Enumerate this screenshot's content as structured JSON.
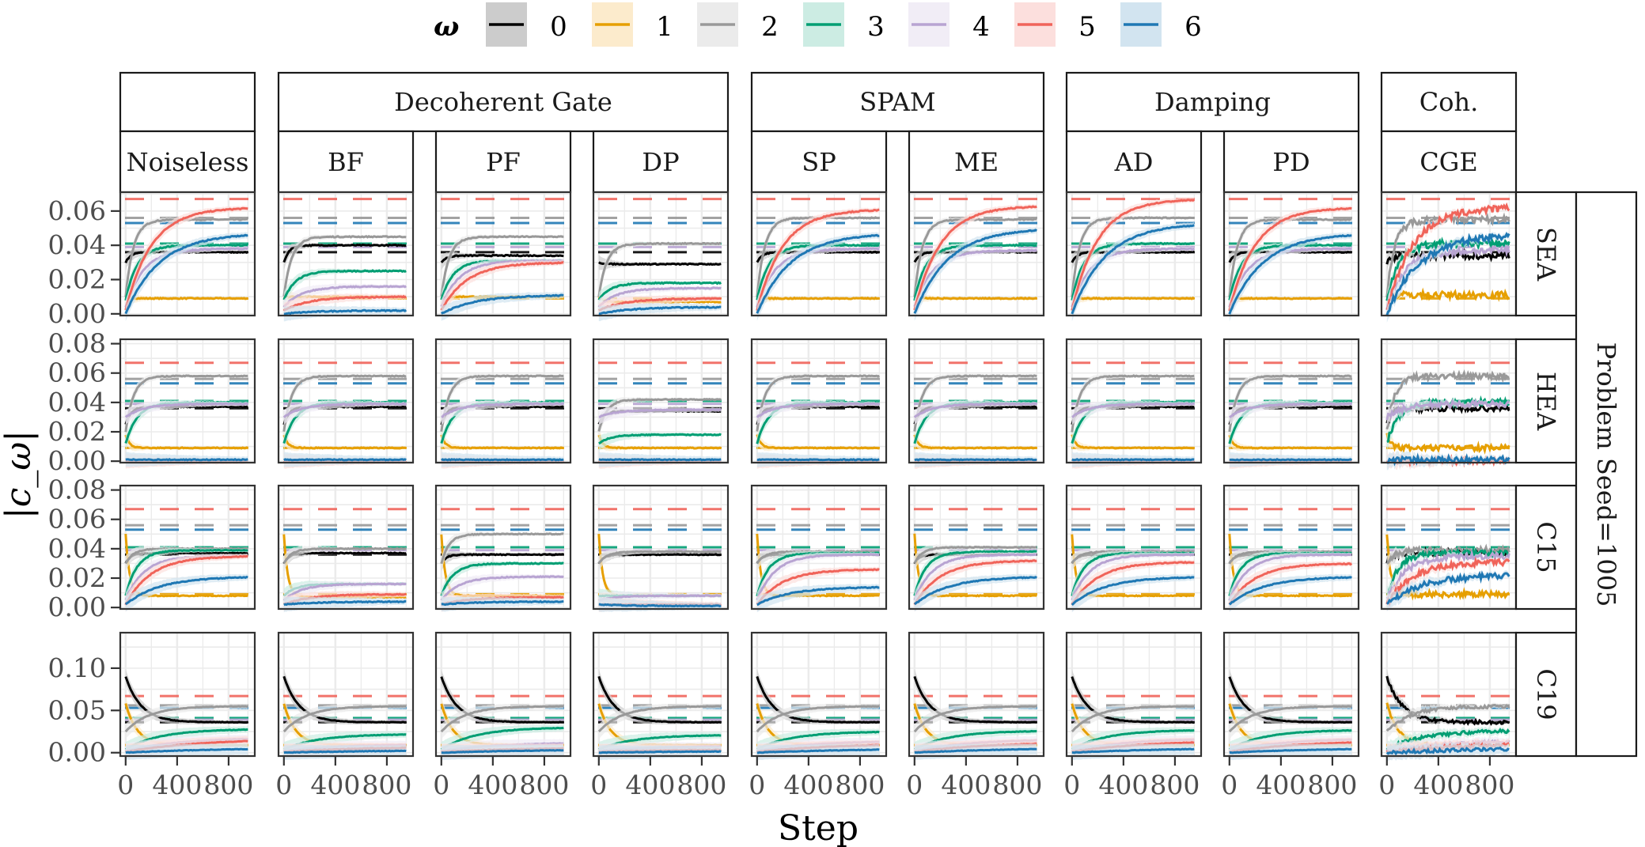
{
  "chart_data": {
    "type": "line",
    "title": "",
    "xlabel": "Step",
    "ylabel": "|c_ω|",
    "legend": {
      "title": "ω",
      "placement": "top",
      "entries": [
        "0",
        "1",
        "2",
        "3",
        "4",
        "5",
        "6"
      ]
    },
    "colors": {
      "0": "#000000",
      "1": "#E69F00",
      "2": "#999999",
      "3": "#009E73",
      "4": "#B8A4D2",
      "5": "#F0645A",
      "6": "#1F78B4"
    },
    "band_colors": {
      "0": "#CCCCCC",
      "1": "#FCEBCC",
      "2": "#EBEBEB",
      "3": "#CCECE3",
      "4": "#F1EDF6",
      "5": "#FCDFDD",
      "6": "#D2E4F0"
    },
    "column_groups": [
      {
        "label": "",
        "columns": [
          "Noiseless"
        ]
      },
      {
        "label": "Decoherent Gate",
        "columns": [
          "BF",
          "PF",
          "DP"
        ]
      },
      {
        "label": "SPAM",
        "columns": [
          "SP",
          "ME"
        ]
      },
      {
        "label": "Damping",
        "columns": [
          "AD",
          "PD"
        ]
      },
      {
        "label": "Coh.",
        "columns": [
          "CGE"
        ]
      }
    ],
    "columns": [
      "Noiseless",
      "BF",
      "PF",
      "DP",
      "SP",
      "ME",
      "AD",
      "PD",
      "CGE"
    ],
    "outer_row_label": "Problem Seed=1005",
    "x_axis": {
      "range": [
        0,
        1000
      ],
      "ticks": [
        0,
        400,
        800
      ],
      "tick_labels": [
        "0",
        "400",
        "800"
      ]
    },
    "rows": [
      {
        "label": "SEA",
        "ylim": [
          -0.001,
          0.071
        ],
        "y_ticks": [
          0.0,
          0.02,
          0.04,
          0.06
        ],
        "y_tick_labels": [
          "0.00",
          "0.02",
          "0.04",
          "0.06"
        ],
        "reference": {
          "0": 0.036,
          "1": 0.009,
          "2": 0.056,
          "3": 0.041,
          "4": 0.039,
          "5": 0.067,
          "6": 0.053
        }
      },
      {
        "label": "HEA",
        "ylim": [
          -0.001,
          0.083
        ],
        "y_ticks": [
          0.0,
          0.02,
          0.04,
          0.06,
          0.08
        ],
        "y_tick_labels": [
          "0.00",
          "0.02",
          "0.04",
          "0.06",
          "0.08"
        ],
        "reference": {
          "0": 0.036,
          "1": 0.009,
          "2": 0.056,
          "3": 0.041,
          "4": 0.039,
          "5": 0.067,
          "6": 0.053
        }
      },
      {
        "label": "C15",
        "ylim": [
          -0.001,
          0.083
        ],
        "y_ticks": [
          0.0,
          0.02,
          0.04,
          0.06,
          0.08
        ],
        "y_tick_labels": [
          "0.00",
          "0.02",
          "0.04",
          "0.06",
          "0.08"
        ],
        "reference": {
          "0": 0.036,
          "1": 0.009,
          "2": 0.056,
          "3": 0.041,
          "4": 0.039,
          "5": 0.067,
          "6": 0.053
        }
      },
      {
        "label": "C19",
        "ylim": [
          -0.004,
          0.142
        ],
        "y_ticks": [
          0.0,
          0.05,
          0.1
        ],
        "y_tick_labels": [
          "0.00",
          "0.05",
          "0.10"
        ],
        "reference": {
          "0": 0.036,
          "1": 0.009,
          "2": 0.056,
          "3": 0.041,
          "4": 0.039,
          "5": 0.067,
          "6": 0.053
        }
      }
    ],
    "series_final_values": {
      "SEA": {
        "Noiseless": [
          0.036,
          0.009,
          0.055,
          0.04,
          0.038,
          0.062,
          0.047
        ],
        "BF": [
          0.04,
          0.01,
          0.045,
          0.025,
          0.016,
          0.01,
          0.002
        ],
        "PF": [
          0.034,
          0.01,
          0.045,
          0.031,
          0.031,
          0.03,
          0.011
        ],
        "DP": [
          0.029,
          0.007,
          0.041,
          0.018,
          0.015,
          0.009,
          0.004
        ],
        "SP": [
          0.036,
          0.009,
          0.056,
          0.04,
          0.038,
          0.061,
          0.047
        ],
        "ME": [
          0.036,
          0.009,
          0.055,
          0.04,
          0.037,
          0.063,
          0.05
        ],
        "AD": [
          0.036,
          0.009,
          0.056,
          0.041,
          0.038,
          0.067,
          0.053
        ],
        "PD": [
          0.036,
          0.009,
          0.055,
          0.04,
          0.038,
          0.062,
          0.047
        ],
        "CGE": [
          0.034,
          0.011,
          0.055,
          0.041,
          0.037,
          0.062,
          0.047
        ]
      },
      "HEA": {
        "Noiseless": [
          0.037,
          0.009,
          0.058,
          0.04,
          0.039,
          0.0,
          0.001
        ],
        "BF": [
          0.037,
          0.009,
          0.058,
          0.04,
          0.039,
          0.0,
          0.001
        ],
        "PF": [
          0.037,
          0.009,
          0.058,
          0.04,
          0.039,
          0.0,
          0.001
        ],
        "DP": [
          0.034,
          0.009,
          0.042,
          0.018,
          0.035,
          0.0,
          0.001
        ],
        "SP": [
          0.037,
          0.009,
          0.058,
          0.04,
          0.039,
          0.0,
          0.001
        ],
        "ME": [
          0.037,
          0.009,
          0.058,
          0.04,
          0.039,
          0.0,
          0.001
        ],
        "AD": [
          0.037,
          0.009,
          0.058,
          0.04,
          0.039,
          0.0,
          0.001
        ],
        "PD": [
          0.037,
          0.009,
          0.058,
          0.04,
          0.039,
          0.0,
          0.001
        ],
        "CGE": [
          0.036,
          0.009,
          0.058,
          0.04,
          0.039,
          0.0,
          0.001
        ]
      },
      "C15": {
        "Noiseless": [
          0.037,
          0.008,
          0.04,
          0.039,
          0.035,
          0.035,
          0.021
        ],
        "BF": [
          0.037,
          0.007,
          0.04,
          0.016,
          0.016,
          0.009,
          0.004
        ],
        "PF": [
          0.036,
          0.008,
          0.05,
          0.03,
          0.021,
          0.007,
          0.004
        ],
        "DP": [
          0.036,
          0.008,
          0.038,
          0.008,
          0.008,
          0.002,
          0.001
        ],
        "SP": [
          0.036,
          0.008,
          0.038,
          0.037,
          0.036,
          0.026,
          0.014
        ],
        "ME": [
          0.036,
          0.008,
          0.041,
          0.038,
          0.036,
          0.032,
          0.021
        ],
        "AD": [
          0.036,
          0.008,
          0.038,
          0.037,
          0.036,
          0.031,
          0.021
        ],
        "PD": [
          0.036,
          0.008,
          0.038,
          0.037,
          0.036,
          0.03,
          0.021
        ],
        "CGE": [
          0.037,
          0.009,
          0.039,
          0.037,
          0.035,
          0.031,
          0.022
        ]
      },
      "C19": {
        "Noiseless": [
          0.036,
          0.009,
          0.055,
          0.028,
          0.018,
          0.017,
          0.006
        ],
        "BF": [
          0.036,
          0.009,
          0.055,
          0.022,
          0.01,
          0.007,
          0.003
        ],
        "PF": [
          0.036,
          0.009,
          0.055,
          0.03,
          0.012,
          0.006,
          0.004
        ],
        "DP": [
          0.036,
          0.009,
          0.055,
          0.021,
          0.008,
          0.004,
          0.002
        ],
        "SP": [
          0.036,
          0.009,
          0.055,
          0.025,
          0.014,
          0.011,
          0.005
        ],
        "ME": [
          0.036,
          0.009,
          0.055,
          0.026,
          0.016,
          0.013,
          0.006
        ],
        "AD": [
          0.036,
          0.009,
          0.055,
          0.027,
          0.017,
          0.015,
          0.006
        ],
        "PD": [
          0.036,
          0.009,
          0.055,
          0.027,
          0.017,
          0.015,
          0.006
        ],
        "CGE": [
          0.036,
          0.009,
          0.055,
          0.026,
          0.014,
          0.012,
          0.006
        ]
      }
    },
    "series_start_values": {
      "SEA": [
        0.03,
        0.01,
        0.01,
        0.008,
        0.004,
        0.002,
        0.0
      ],
      "HEA": [
        0.025,
        0.018,
        0.02,
        0.012,
        0.03,
        0.0,
        0.001
      ],
      "C15": [
        0.03,
        0.05,
        0.03,
        0.008,
        0.005,
        0.002,
        0.002
      ],
      "C19": [
        0.09,
        0.058,
        0.025,
        0.004,
        0.002,
        0.001,
        0.0
      ]
    }
  }
}
